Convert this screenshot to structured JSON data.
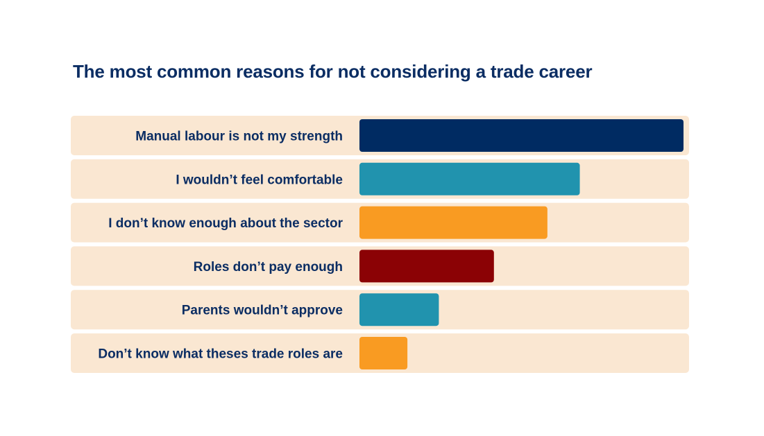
{
  "chart_data": {
    "type": "bar",
    "orientation": "horizontal",
    "title": "The most common reasons for not considering a trade career",
    "xlabel": "",
    "ylabel": "",
    "xlim": [
      0,
      100
    ],
    "grid": false,
    "legend": "none",
    "categories": [
      "Manual labour is not my strength",
      "I wouldn’t feel comfortable",
      "I don’t know enough about the sector",
      "Roles don’t pay enough",
      "Parents wouldn’t approve",
      "Don’t know what theses trade roles are"
    ],
    "values": [
      100,
      68,
      58,
      41.5,
      24.5,
      14.8
    ],
    "colors": [
      "#002b62",
      "#2193ae",
      "#f99b22",
      "#8b0205",
      "#2193ae",
      "#f99b22"
    ],
    "row_background": "#fae7d2"
  }
}
